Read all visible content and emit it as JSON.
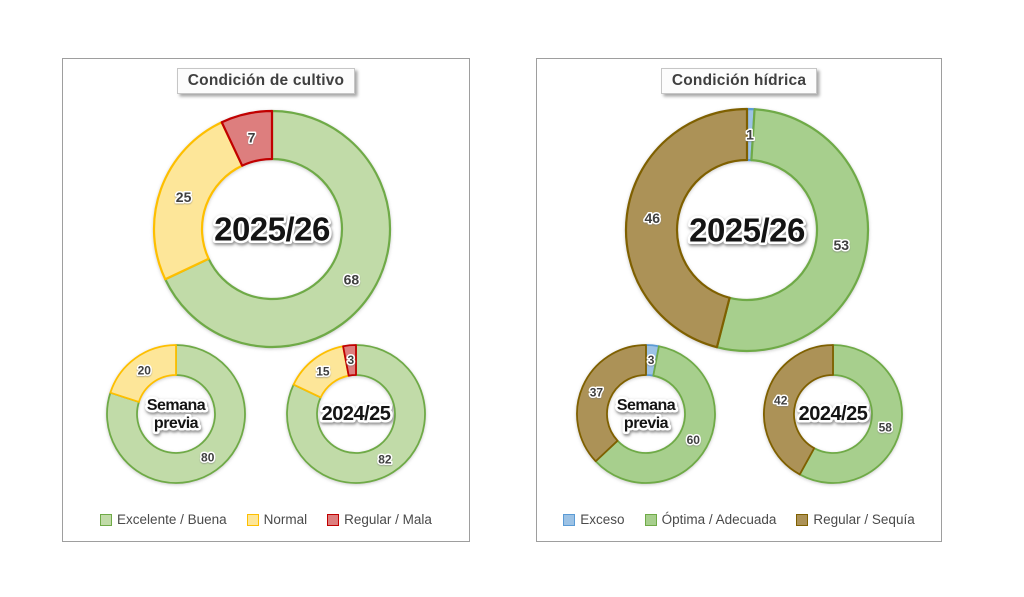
{
  "page": {
    "background": "#ffffff"
  },
  "panels": [
    {
      "title": "Condición de cultivo",
      "legend": [
        {
          "label": "Excelente / Buena",
          "fill": "#c1dba8",
          "border": "#6faa47"
        },
        {
          "label": "Normal",
          "fill": "#fde699",
          "border": "#febf00"
        },
        {
          "label": "Regular / Mala",
          "fill": "#dd7e7e",
          "border": "#c10000"
        }
      ]
    },
    {
      "title": "Condición hídrica",
      "legend": [
        {
          "label": "Exceso",
          "fill": "#9cc2e5",
          "border": "#5b9bd5"
        },
        {
          "label": "Óptima / Adecuada",
          "fill": "#a7cf8d",
          "border": "#6faa47"
        },
        {
          "label": "Regular / Sequía",
          "fill": "#ac9257",
          "border": "#7f6000"
        }
      ]
    }
  ],
  "chart_data": [
    {
      "type": "pie",
      "donut": true,
      "panel": 0,
      "name": "donut-cultivo-2025-26",
      "center_label": "2025/26",
      "categories": [
        "Excelente / Buena",
        "Normal",
        "Regular / Mala"
      ],
      "values": [
        68,
        25,
        7
      ],
      "colors": [
        "#c1dba8",
        "#fde699",
        "#dd7e7e"
      ],
      "borders": [
        "#6faa47",
        "#febf00",
        "#c10000"
      ],
      "start_angle_deg": 0,
      "direction": "clockwise",
      "legend_position": "bottom"
    },
    {
      "type": "pie",
      "donut": true,
      "panel": 0,
      "name": "donut-cultivo-semana-previa",
      "center_label": "Semana\nprevia",
      "categories": [
        "Excelente / Buena",
        "Normal",
        "Regular / Mala"
      ],
      "values": [
        80,
        20,
        0
      ],
      "colors": [
        "#c1dba8",
        "#fde699",
        "#dd7e7e"
      ],
      "borders": [
        "#6faa47",
        "#febf00",
        "#c10000"
      ],
      "start_angle_deg": 0,
      "direction": "clockwise"
    },
    {
      "type": "pie",
      "donut": true,
      "panel": 0,
      "name": "donut-cultivo-2024-25",
      "center_label": "2024/25",
      "categories": [
        "Excelente / Buena",
        "Normal",
        "Regular / Mala"
      ],
      "values": [
        82,
        15,
        3
      ],
      "colors": [
        "#c1dba8",
        "#fde699",
        "#dd7e7e"
      ],
      "borders": [
        "#6faa47",
        "#febf00",
        "#c10000"
      ],
      "start_angle_deg": 0,
      "direction": "clockwise"
    },
    {
      "type": "pie",
      "donut": true,
      "panel": 1,
      "name": "donut-hidrica-2025-26",
      "center_label": "2025/26",
      "categories": [
        "Exceso",
        "Óptima / Adecuada",
        "Regular / Sequía"
      ],
      "values": [
        1,
        53,
        46
      ],
      "colors": [
        "#9cc2e5",
        "#a7cf8d",
        "#ac9257"
      ],
      "borders": [
        "#5b9bd5",
        "#6faa47",
        "#7f6000"
      ],
      "start_angle_deg": 0,
      "direction": "clockwise",
      "legend_position": "bottom"
    },
    {
      "type": "pie",
      "donut": true,
      "panel": 1,
      "name": "donut-hidrica-semana-previa",
      "center_label": "Semana\nprevia",
      "categories": [
        "Exceso",
        "Óptima / Adecuada",
        "Regular / Sequía"
      ],
      "values": [
        3,
        60,
        37
      ],
      "colors": [
        "#9cc2e5",
        "#a7cf8d",
        "#ac9257"
      ],
      "borders": [
        "#5b9bd5",
        "#6faa47",
        "#7f6000"
      ],
      "start_angle_deg": 0,
      "direction": "clockwise"
    },
    {
      "type": "pie",
      "donut": true,
      "panel": 1,
      "name": "donut-hidrica-2024-25",
      "center_label": "2024/25",
      "categories": [
        "Exceso",
        "Óptima / Adecuada",
        "Regular / Sequía"
      ],
      "values": [
        0,
        58,
        42
      ],
      "colors": [
        "#9cc2e5",
        "#a7cf8d",
        "#ac9257"
      ],
      "borders": [
        "#5b9bd5",
        "#6faa47",
        "#7f6000"
      ],
      "start_angle_deg": 0,
      "direction": "clockwise"
    }
  ]
}
